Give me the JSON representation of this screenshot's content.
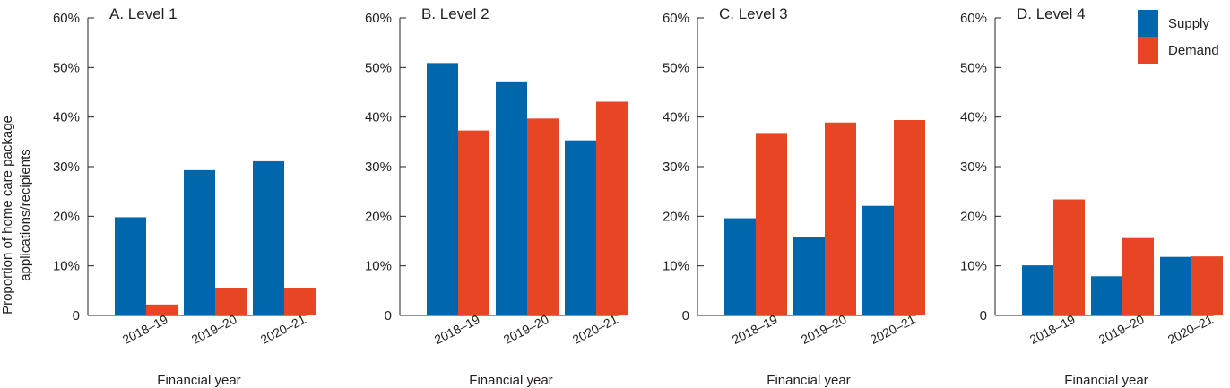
{
  "figure": {
    "ylabel_line1": "Proportion of home care package",
    "ylabel_line2": "applications/recipients",
    "legend": [
      {
        "label": "Supply",
        "color": "#0067ac"
      },
      {
        "label": "Demand",
        "color": "#e84524"
      }
    ]
  },
  "chart_data": [
    {
      "type": "bar",
      "title": "A. Level 1",
      "xlabel": "Financial year",
      "ylim": [
        0,
        60
      ],
      "yticks": [
        "0",
        "10%",
        "20%",
        "30%",
        "40%",
        "50%",
        "60%"
      ],
      "categories": [
        "2018–19",
        "2019–20",
        "2020–21"
      ],
      "series": [
        {
          "name": "Supply",
          "values": [
            19.8,
            29.3,
            31.1
          ]
        },
        {
          "name": "Demand",
          "values": [
            2.2,
            5.6,
            5.6
          ]
        }
      ]
    },
    {
      "type": "bar",
      "title": "B. Level 2",
      "xlabel": "Financial year",
      "ylim": [
        0,
        60
      ],
      "yticks": [
        "0",
        "10%",
        "20%",
        "30%",
        "40%",
        "50%",
        "60%"
      ],
      "categories": [
        "2018–19",
        "2019–20",
        "2020–21"
      ],
      "series": [
        {
          "name": "Supply",
          "values": [
            50.9,
            47.2,
            35.3
          ]
        },
        {
          "name": "Demand",
          "values": [
            37.3,
            39.7,
            43.1
          ]
        }
      ]
    },
    {
      "type": "bar",
      "title": "C. Level 3",
      "xlabel": "Financial year",
      "ylim": [
        0,
        60
      ],
      "yticks": [
        "0",
        "10%",
        "20%",
        "30%",
        "40%",
        "50%",
        "60%"
      ],
      "categories": [
        "2018–19",
        "2019–20",
        "2020–21"
      ],
      "series": [
        {
          "name": "Supply",
          "values": [
            19.6,
            15.8,
            22.1
          ]
        },
        {
          "name": "Demand",
          "values": [
            36.8,
            38.9,
            39.4
          ]
        }
      ]
    },
    {
      "type": "bar",
      "title": "D. Level 4",
      "xlabel": "Financial year",
      "ylim": [
        0,
        60
      ],
      "yticks": [
        "0",
        "10%",
        "20%",
        "30%",
        "40%",
        "50%",
        "60%"
      ],
      "categories": [
        "2018–19",
        "2019–20",
        "2020–21"
      ],
      "series": [
        {
          "name": "Supply",
          "values": [
            10.1,
            7.9,
            11.8
          ]
        },
        {
          "name": "Demand",
          "values": [
            23.4,
            15.6,
            11.9
          ]
        }
      ]
    }
  ]
}
